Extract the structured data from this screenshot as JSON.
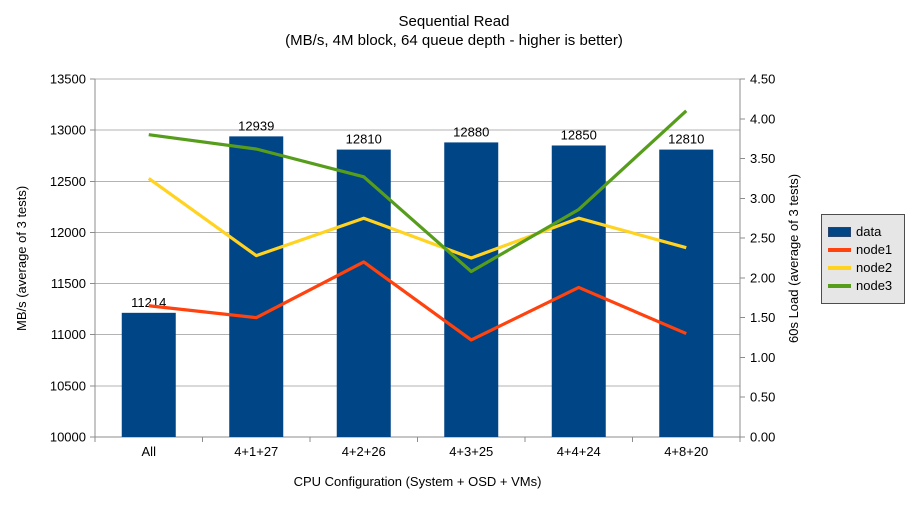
{
  "title": "Sequential Read",
  "subtitle": "(MB/s, 4M block, 64 queue depth - higher is better)",
  "chart_data": {
    "type": "bar",
    "combo": "bars with overlaid lines, dual y-axes",
    "categories": [
      "All",
      "4+1+27",
      "4+2+26",
      "4+3+25",
      "4+4+24",
      "4+8+20"
    ],
    "series": [
      {
        "name": "data",
        "type": "bar",
        "axis": "left",
        "color": "#004586",
        "values": [
          11214,
          12939,
          12810,
          12880,
          12850,
          12810
        ],
        "data_labels": [
          "11214",
          "12939",
          "12810",
          "12880",
          "12850",
          "12810"
        ]
      },
      {
        "name": "node1",
        "type": "line",
        "axis": "right",
        "color": "#FF420E",
        "values": [
          1.65,
          1.5,
          2.2,
          1.22,
          1.88,
          1.3
        ]
      },
      {
        "name": "node2",
        "type": "line",
        "axis": "right",
        "color": "#FFD320",
        "values": [
          3.25,
          2.28,
          2.75,
          2.25,
          2.75,
          2.38
        ]
      },
      {
        "name": "node3",
        "type": "line",
        "axis": "right",
        "color": "#579D1C",
        "values": [
          3.8,
          3.62,
          3.27,
          2.08,
          2.86,
          4.1
        ]
      }
    ],
    "left_axis": {
      "title": "MB/s (average of 3 tests)",
      "min": 10000,
      "max": 13500,
      "step": 500
    },
    "right_axis": {
      "title": "60s Load (average of 3 tests)",
      "min": 0.0,
      "max": 4.5,
      "step": 0.5,
      "decimals": 2
    },
    "x_axis": {
      "title": "CPU Configuration (System + OSD + VMs)"
    },
    "legend": {
      "position": "right"
    },
    "grid": "horizontal gridlines at left-axis steps"
  },
  "colors": {
    "background": "#ffffff",
    "grid": "#b3b3b3",
    "axis": "#8c8c8c",
    "text": "#000000",
    "legend_bg": "#e6e6e6",
    "legend_border": "#4d4d4d"
  }
}
